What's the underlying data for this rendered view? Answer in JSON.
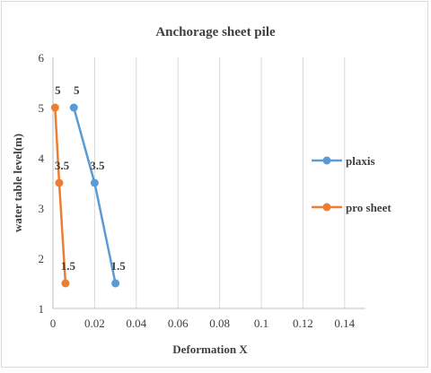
{
  "chart_data": {
    "type": "scatter",
    "title": "Anchorage  sheet pile",
    "xlabel": "Deformation X",
    "ylabel": "water table level(m)",
    "xlim": [
      0,
      0.15
    ],
    "ylim": [
      1,
      6
    ],
    "x_ticks": [
      "0",
      "0.02",
      "0.04",
      "0.06",
      "0.08",
      "0.1",
      "0.12",
      "0.14"
    ],
    "y_ticks": [
      "1",
      "2",
      "3",
      "4",
      "5",
      "6"
    ],
    "grid": "vertical",
    "legend_position": "right",
    "series": [
      {
        "name": "plaxis",
        "color": "#5b9bd5",
        "points": [
          {
            "x": 0.01,
            "y": 5,
            "label": "5"
          },
          {
            "x": 0.02,
            "y": 3.5,
            "label": "3.5"
          },
          {
            "x": 0.03,
            "y": 1.5,
            "label": "1.5"
          }
        ]
      },
      {
        "name": "pro sheet",
        "color": "#ed7d31",
        "points": [
          {
            "x": 0.001,
            "y": 5,
            "label": "5"
          },
          {
            "x": 0.003,
            "y": 3.5,
            "label": "3.5"
          },
          {
            "x": 0.006,
            "y": 1.5,
            "label": "1.5"
          }
        ]
      }
    ]
  }
}
